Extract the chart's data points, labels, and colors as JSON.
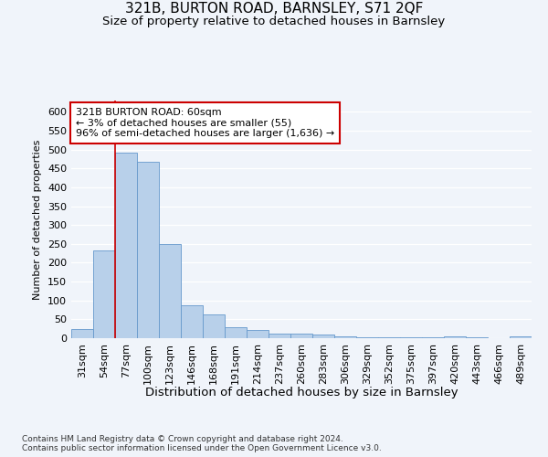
{
  "title_line1": "321B, BURTON ROAD, BARNSLEY, S71 2QF",
  "title_line2": "Size of property relative to detached houses in Barnsley",
  "xlabel": "Distribution of detached houses by size in Barnsley",
  "ylabel": "Number of detached properties",
  "categories": [
    "31sqm",
    "54sqm",
    "77sqm",
    "100sqm",
    "123sqm",
    "146sqm",
    "168sqm",
    "191sqm",
    "214sqm",
    "237sqm",
    "260sqm",
    "283sqm",
    "306sqm",
    "329sqm",
    "352sqm",
    "375sqm",
    "397sqm",
    "420sqm",
    "443sqm",
    "466sqm",
    "489sqm"
  ],
  "values": [
    25,
    233,
    492,
    468,
    250,
    88,
    62,
    30,
    22,
    12,
    11,
    10,
    5,
    3,
    2,
    2,
    2,
    6,
    2,
    1,
    5
  ],
  "bar_color": "#b8d0ea",
  "bar_edge_color": "#6699cc",
  "vline_color": "#cc0000",
  "annotation_text": "321B BURTON ROAD: 60sqm\n← 3% of detached houses are smaller (55)\n96% of semi-detached houses are larger (1,636) →",
  "annotation_box_color": "white",
  "annotation_box_edge_color": "#cc0000",
  "ylim": [
    0,
    630
  ],
  "yticks": [
    0,
    50,
    100,
    150,
    200,
    250,
    300,
    350,
    400,
    450,
    500,
    550,
    600
  ],
  "footer_text": "Contains HM Land Registry data © Crown copyright and database right 2024.\nContains public sector information licensed under the Open Government Licence v3.0.",
  "background_color": "#f0f4fa",
  "grid_color": "white",
  "title_fontsize": 11,
  "subtitle_fontsize": 9.5,
  "annotation_fontsize": 8,
  "tick_fontsize": 8,
  "ylabel_fontsize": 8,
  "xlabel_fontsize": 9.5,
  "footer_fontsize": 6.5
}
